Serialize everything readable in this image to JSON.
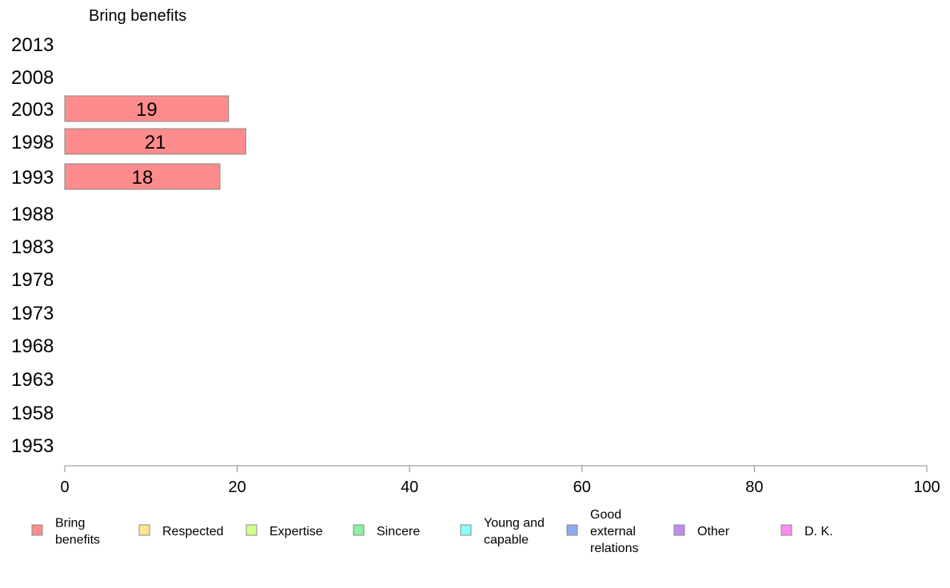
{
  "chart_data": {
    "type": "bar",
    "orientation": "horizontal",
    "title": "Bring benefits",
    "categories": [
      "2013",
      "2008",
      "2003",
      "1998",
      "1993",
      "1988",
      "1983",
      "1978",
      "1973",
      "1968",
      "1963",
      "1958",
      "1953"
    ],
    "series": [
      {
        "name": "Bring benefits",
        "values": [
          null,
          null,
          19,
          21,
          18,
          null,
          null,
          null,
          null,
          null,
          null,
          null,
          null
        ],
        "color": "#ff8c8c"
      }
    ],
    "xlim": [
      0,
      100
    ],
    "xticks": [
      0,
      20,
      40,
      60,
      80,
      100
    ],
    "grid": false,
    "legend_position": "bottom",
    "legend": [
      {
        "label": "Bring benefits",
        "color": "#ff8c8c"
      },
      {
        "label": "Respected",
        "color": "#ffe68c"
      },
      {
        "label": "Expertise",
        "color": "#d2ff8c"
      },
      {
        "label": "Sincere",
        "color": "#8cf0a0"
      },
      {
        "label": "Young and capable",
        "color": "#8cffff"
      },
      {
        "label": "Good external relations",
        "color": "#8caaf0"
      },
      {
        "label": "Other",
        "color": "#be8cf0"
      },
      {
        "label": "D. K.",
        "color": "#ff8cf0"
      }
    ]
  }
}
